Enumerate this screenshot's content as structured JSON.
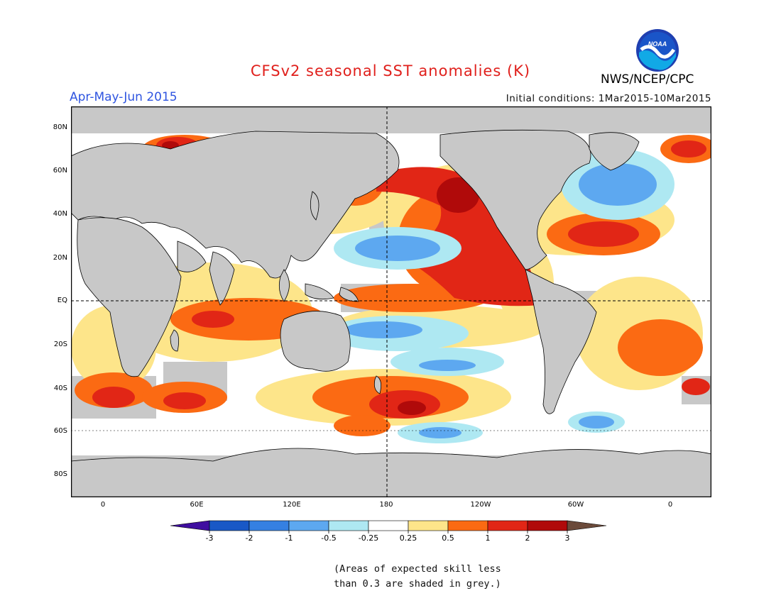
{
  "title": "CFSv2 seasonal SST anomalies (K)",
  "season": "Apr-May-Jun 2015",
  "initial_conditions": "Initial conditions: 1Mar2015-10Mar2015",
  "agency": "NWS/NCEP/CPC",
  "logo_text": "NOAA",
  "lat_labels": [
    "80N",
    "60N",
    "40N",
    "20N",
    "EQ",
    "20S",
    "40S",
    "60S",
    "80S"
  ],
  "lon_labels": [
    "0",
    "60E",
    "120E",
    "180",
    "120W",
    "60W",
    "0"
  ],
  "colorbar": {
    "tick_labels": [
      "-3",
      "-2",
      "-1",
      "-0.5",
      "-0.25",
      "0.25",
      "0.5",
      "1",
      "2",
      "3"
    ],
    "colors": [
      "#3f0ea0",
      "#1958c6",
      "#3580e2",
      "#5da8f0",
      "#aee8f2",
      "#ffffff",
      "#fde58a",
      "#fb6a13",
      "#e12616",
      "#b00a0a",
      "#6b4a3a"
    ]
  },
  "note_lines": [
    "(Areas of expected skill less",
    "than 0.3 are shaded in grey.)"
  ],
  "colors": {
    "land": "#c8c8c8",
    "grey_skill": "#c8c8c8",
    "ocean_neutral": "#ffffff"
  }
}
